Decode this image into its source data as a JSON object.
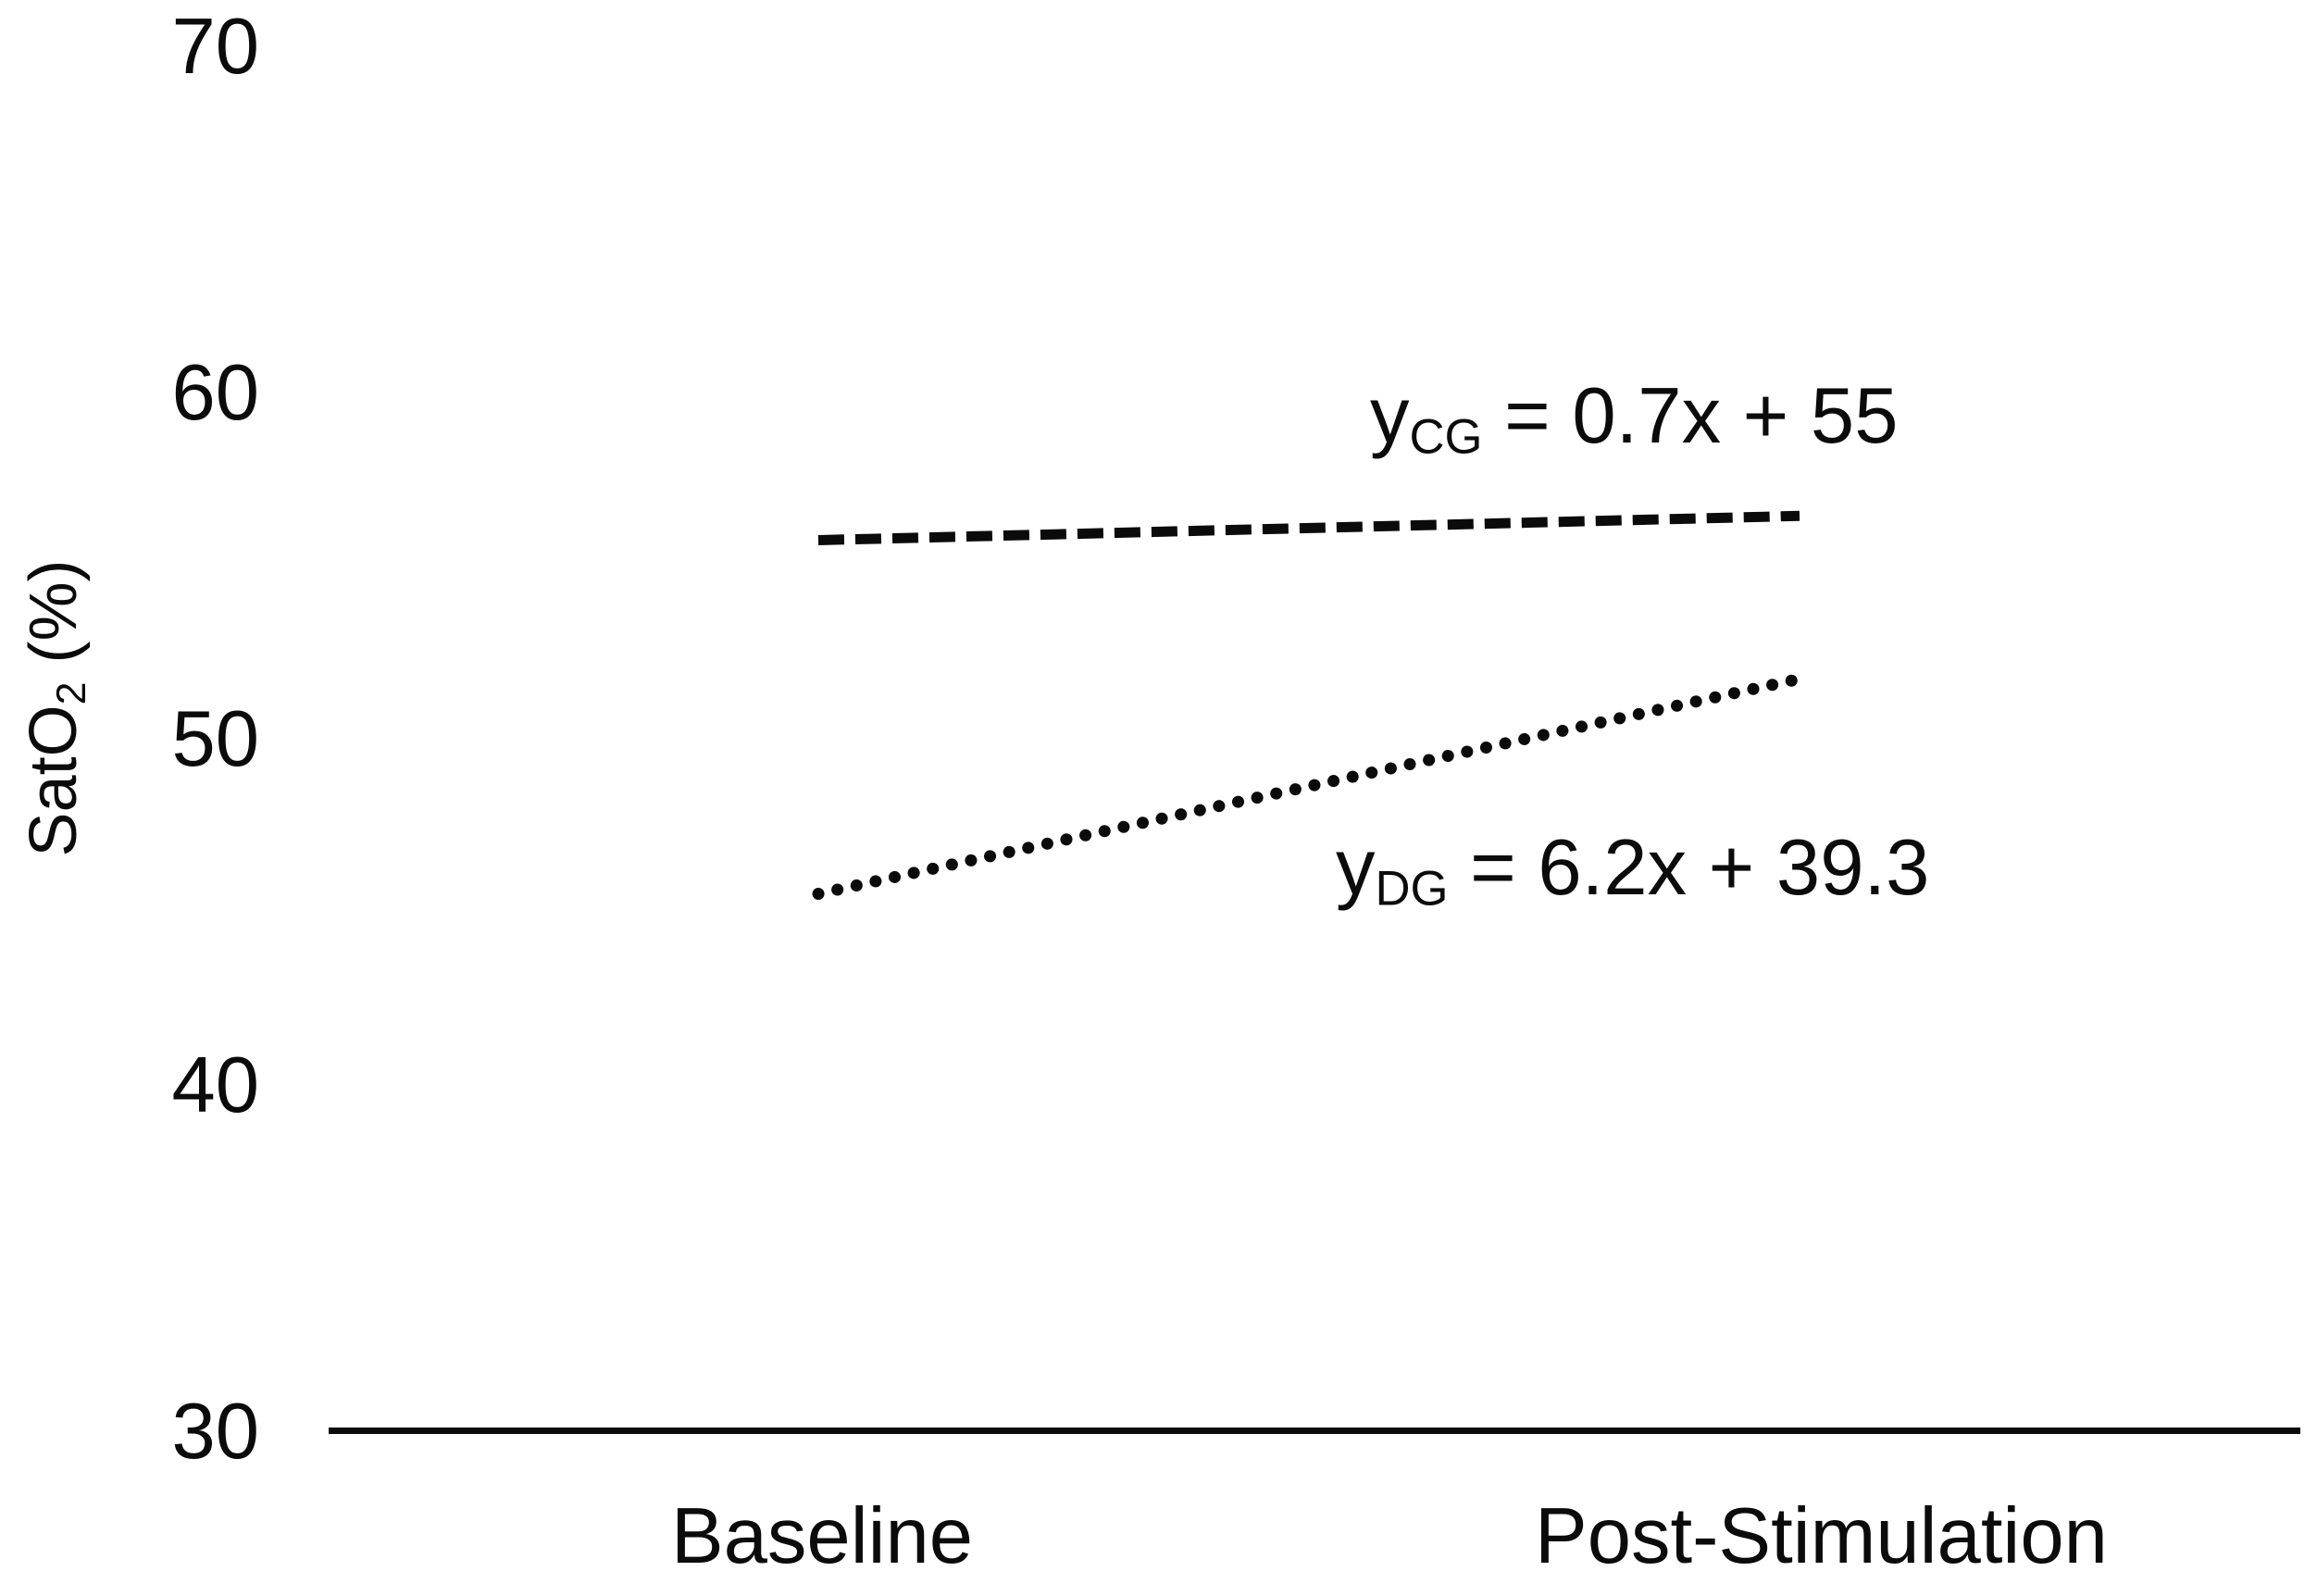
{
  "chart_data": {
    "type": "line",
    "title": "",
    "categories": [
      "Baseline",
      "Post-Stimulation"
    ],
    "x_values": [
      1,
      2
    ],
    "series": [
      {
        "name": "CG",
        "line_style": "dashed",
        "values": [
          55.7,
          56.4
        ],
        "slope": 0.7,
        "intercept": 55,
        "equation": {
          "base": "y",
          "sub": "CG",
          "rest": " = 0.7x + 55"
        }
      },
      {
        "name": "DG",
        "line_style": "dotted",
        "values": [
          45.5,
          51.7
        ],
        "slope": 6.2,
        "intercept": 39.3,
        "equation": {
          "base": "y",
          "sub": "DG",
          "rest": " = 6.2x + 39.3"
        }
      }
    ],
    "ylabel": {
      "base": "SatO",
      "sub": "2",
      "rest": " (%)"
    },
    "yticks": [
      "70",
      "60",
      "50",
      "40",
      "30"
    ],
    "ylim": [
      30,
      70
    ],
    "xlabel": "",
    "grid": false,
    "legend": "none",
    "line_color": "#000000",
    "background_color": "#ffffff"
  }
}
